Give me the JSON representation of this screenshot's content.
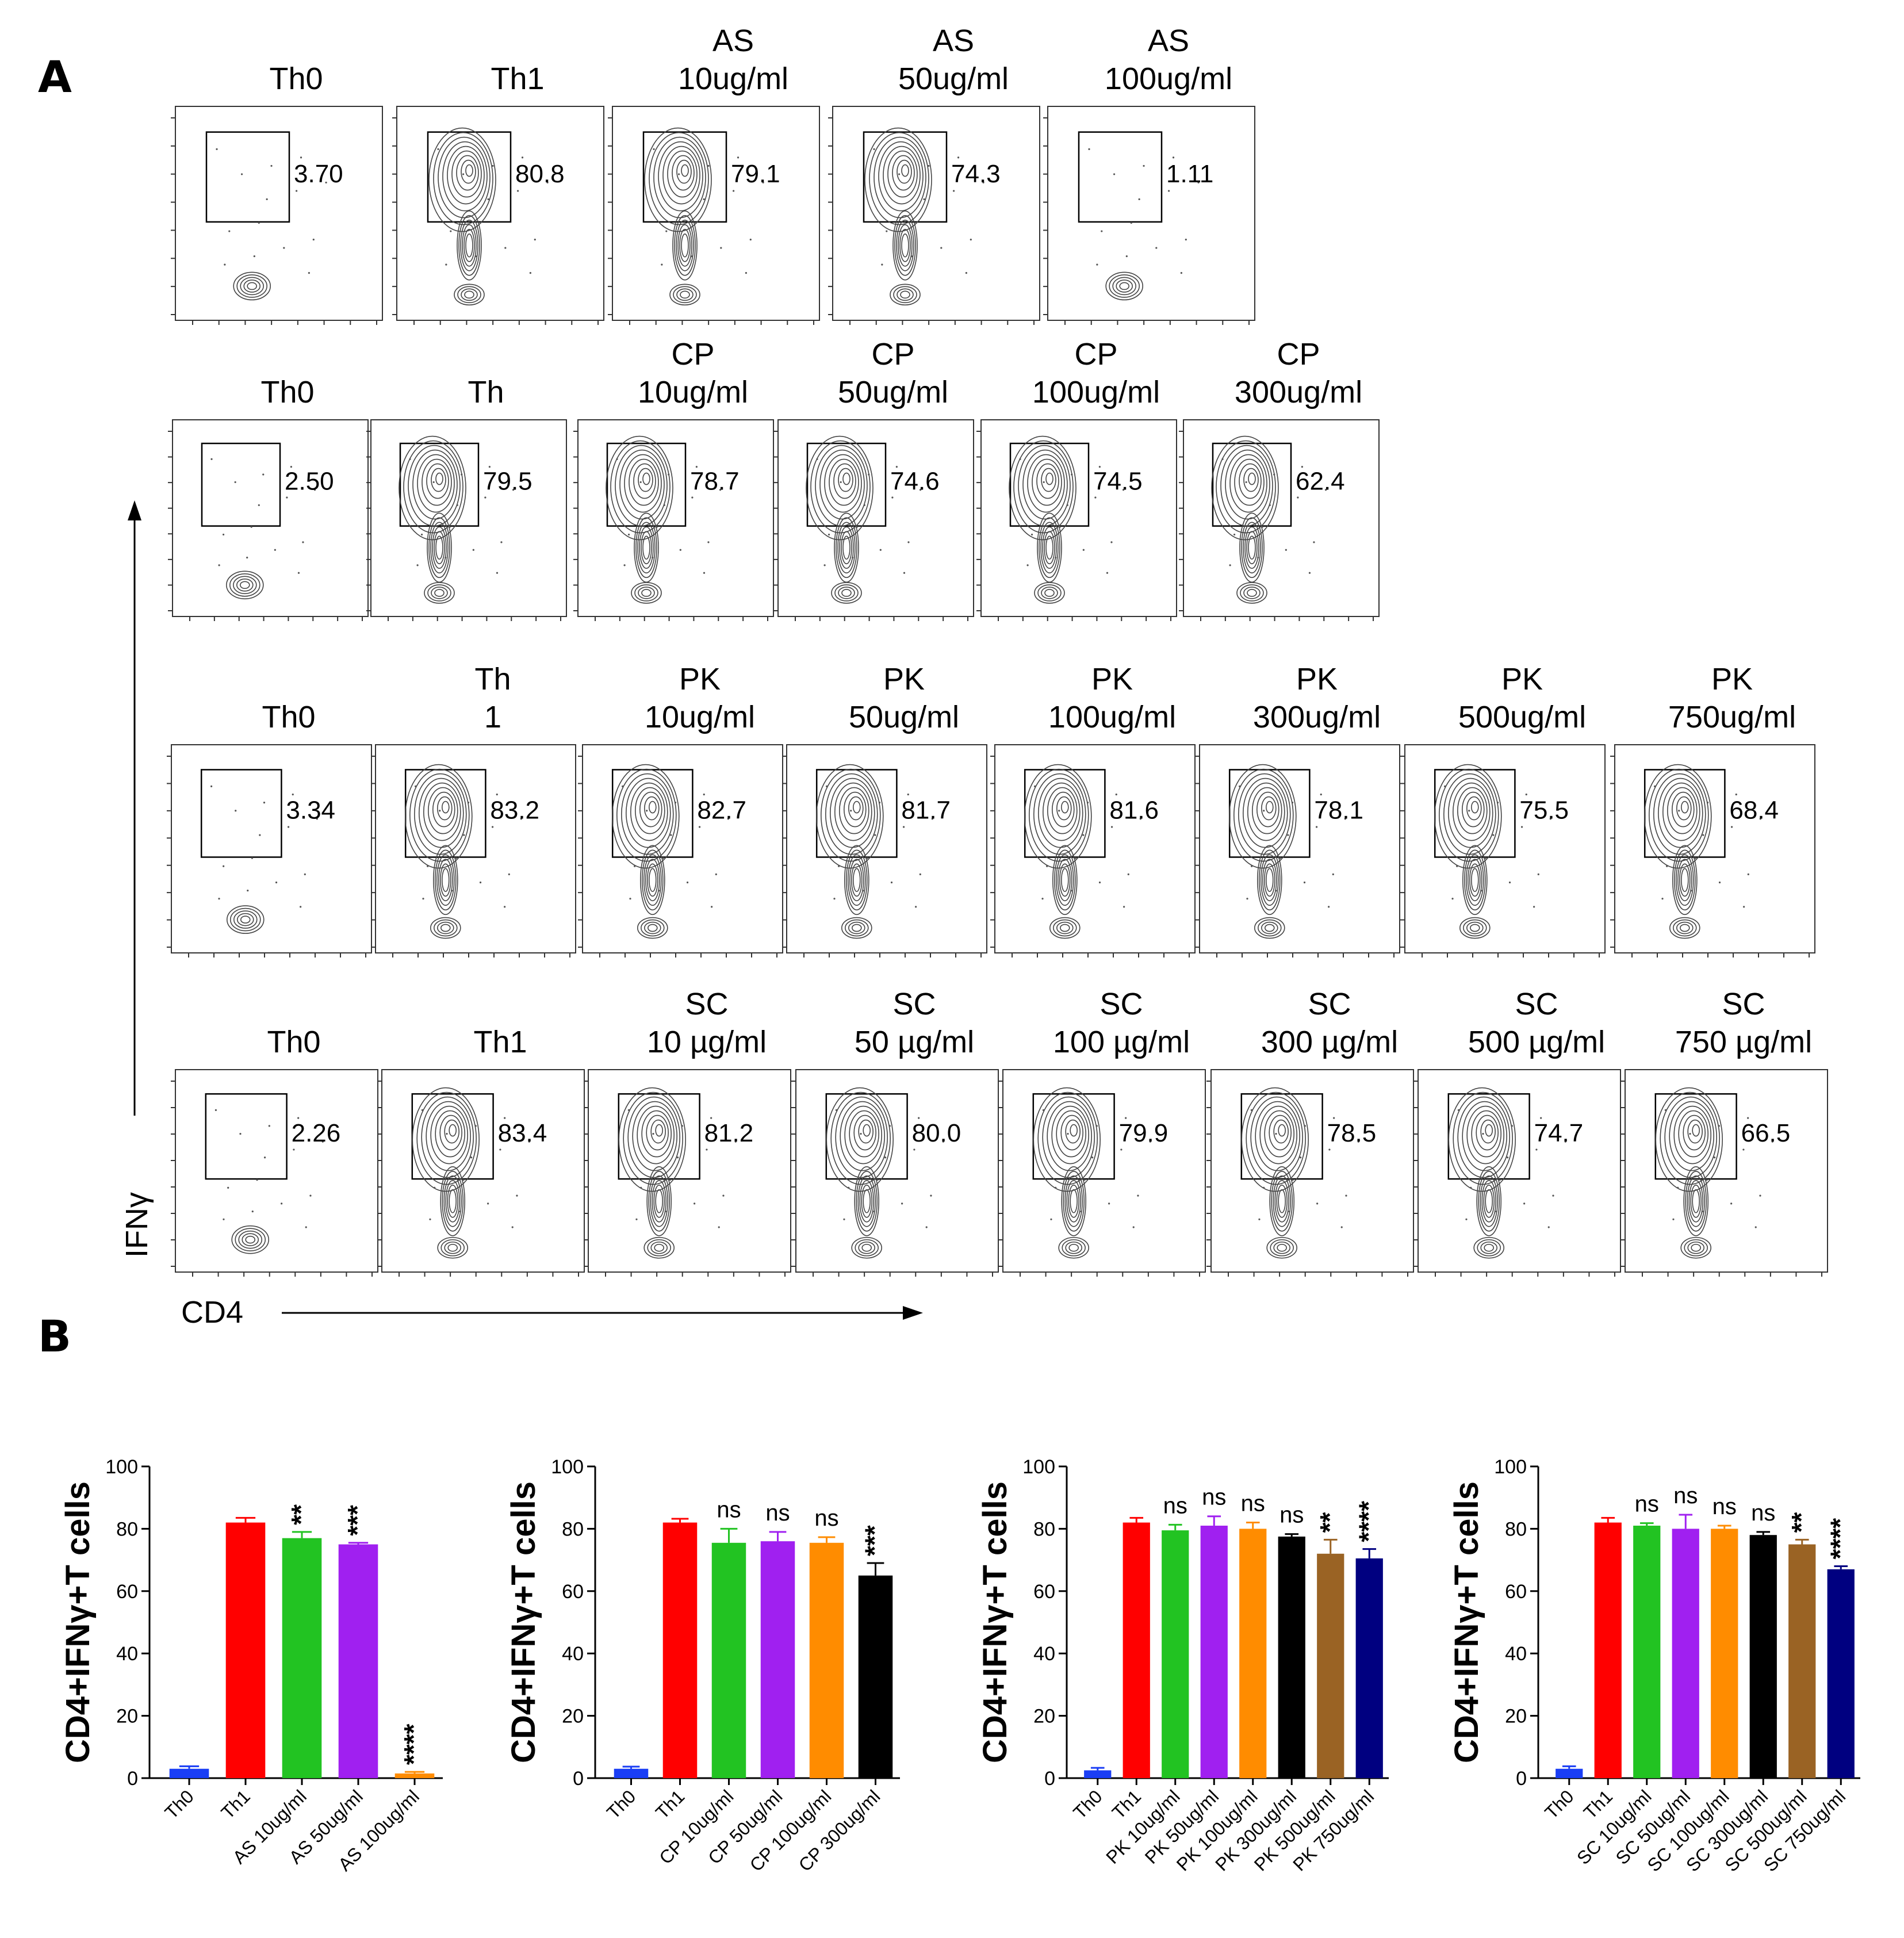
{
  "panel_labels": {
    "a": "A",
    "b": "B"
  },
  "panel_a": {
    "y_axis_label": "IFNγ",
    "x_axis_label": "CD4",
    "rows": [
      {
        "plots": [
          {
            "title": [
              "Th0"
            ],
            "value": "3.70",
            "pattern": "neg"
          },
          {
            "title": [
              "Th1"
            ],
            "value": "80.8",
            "pattern": "pos"
          },
          {
            "title": [
              "AS",
              "10ug/ml"
            ],
            "value": "79.1",
            "pattern": "pos"
          },
          {
            "title": [
              "AS",
              "50ug/ml"
            ],
            "value": "74.3",
            "pattern": "pos"
          },
          {
            "title": [
              "AS",
              "100ug/ml"
            ],
            "value": "1.11",
            "pattern": "neg"
          }
        ]
      },
      {
        "plots": [
          {
            "title": [
              "Th0"
            ],
            "value": "2.50",
            "pattern": "neg"
          },
          {
            "title": [
              "Th"
            ],
            "value": "79.5",
            "pattern": "pos"
          },
          {
            "title": [
              "CP",
              "10ug/ml"
            ],
            "value": "78.7",
            "pattern": "pos"
          },
          {
            "title": [
              "CP",
              "50ug/ml"
            ],
            "value": "74.6",
            "pattern": "pos"
          },
          {
            "title": [
              "CP",
              "100ug/ml"
            ],
            "value": "74.5",
            "pattern": "pos"
          },
          {
            "title": [
              "CP",
              "300ug/ml"
            ],
            "value": "62.4",
            "pattern": "pos"
          }
        ]
      },
      {
        "plots": [
          {
            "title": [
              "Th0"
            ],
            "value": "3.34",
            "pattern": "neg"
          },
          {
            "title": [
              "Th",
              "1"
            ],
            "value": "83.2",
            "pattern": "pos"
          },
          {
            "title": [
              "PK",
              "10ug/ml"
            ],
            "value": "82.7",
            "pattern": "pos"
          },
          {
            "title": [
              "PK",
              "50ug/ml"
            ],
            "value": "81.7",
            "pattern": "pos"
          },
          {
            "title": [
              "PK",
              "100ug/ml"
            ],
            "value": "81.6",
            "pattern": "pos"
          },
          {
            "title": [
              "PK",
              "300ug/ml"
            ],
            "value": "78.1",
            "pattern": "pos"
          },
          {
            "title": [
              "PK",
              "500ug/ml"
            ],
            "value": "75.5",
            "pattern": "pos"
          },
          {
            "title": [
              "PK",
              "750ug/ml"
            ],
            "value": "68.4",
            "pattern": "pos"
          }
        ]
      },
      {
        "plots": [
          {
            "title": [
              "Th0"
            ],
            "value": "2.26",
            "pattern": "neg"
          },
          {
            "title": [
              "Th1"
            ],
            "value": "83.4",
            "pattern": "pos"
          },
          {
            "title": [
              "SC",
              "10 µg/ml"
            ],
            "value": "81.2",
            "pattern": "pos"
          },
          {
            "title": [
              "SC",
              "50 µg/ml"
            ],
            "value": "80.0",
            "pattern": "pos"
          },
          {
            "title": [
              "SC",
              "100 µg/ml"
            ],
            "value": "79.9",
            "pattern": "pos"
          },
          {
            "title": [
              "SC",
              "300 µg/ml"
            ],
            "value": "78.5",
            "pattern": "pos"
          },
          {
            "title": [
              "SC",
              "500 µg/ml"
            ],
            "value": "74.7",
            "pattern": "pos"
          },
          {
            "title": [
              "SC",
              "750 µg/ml"
            ],
            "value": "66.5",
            "pattern": "pos"
          }
        ]
      }
    ]
  },
  "chart_data": [
    {
      "type": "bar",
      "ylabel": "CD4+IFNγ+T cells",
      "ylim": [
        0,
        100
      ],
      "yticks": [
        "0",
        "20",
        "40",
        "60",
        "80",
        "100"
      ],
      "categories": [
        "Th0",
        "Th1",
        "AS 10ug/ml",
        "AS 50ug/ml",
        "AS 100ug/ml"
      ],
      "values": [
        3,
        82,
        77,
        75,
        1.5
      ],
      "errors": [
        0.8,
        1.5,
        2,
        0.5,
        0.5
      ],
      "annotations": [
        "",
        "",
        "**",
        "***",
        "****"
      ],
      "colors": [
        "#1a3ef5",
        "#ff0000",
        "#22c322",
        "#a020f0",
        "#ff8c00"
      ]
    },
    {
      "type": "bar",
      "ylabel": "CD4+IFNγ+T cells",
      "ylim": [
        0,
        100
      ],
      "yticks": [
        "0",
        "20",
        "40",
        "60",
        "80",
        "100"
      ],
      "categories": [
        "Th0",
        "Th1",
        "CP 10ug/ml",
        "CP 50ug/ml",
        "CP 100ug/ml",
        "CP 300ug/ml"
      ],
      "values": [
        3,
        82,
        75.5,
        76,
        75.5,
        65
      ],
      "errors": [
        0.7,
        1.2,
        4.5,
        3,
        1.8,
        4
      ],
      "annotations": [
        "",
        "",
        "ns",
        "ns",
        "ns",
        "***"
      ],
      "colors": [
        "#1a3ef5",
        "#ff0000",
        "#22c322",
        "#a020f0",
        "#ff8c00",
        "#000000"
      ]
    },
    {
      "type": "bar",
      "ylabel": "CD4+IFNγ+T cells",
      "ylim": [
        0,
        100
      ],
      "yticks": [
        "0",
        "20",
        "40",
        "60",
        "80",
        "100"
      ],
      "categories": [
        "Th0",
        "Th1",
        "PK 10ug/ml",
        "PK 50ug/ml",
        "PK 100ug/ml",
        "PK 300ug/ml",
        "PK 500ug/ml",
        "PK 750ug/ml"
      ],
      "values": [
        2.5,
        82,
        79.5,
        81,
        80,
        77.5,
        72,
        70.5
      ],
      "errors": [
        0.8,
        1.5,
        1.8,
        3,
        2,
        0.8,
        4.5,
        3
      ],
      "annotations": [
        "",
        "",
        "ns",
        "ns",
        "ns",
        "ns",
        "**",
        "****"
      ],
      "colors": [
        "#1a3ef5",
        "#ff0000",
        "#22c322",
        "#a020f0",
        "#ff8c00",
        "#000000",
        "#9a6324",
        "#000080"
      ]
    },
    {
      "type": "bar",
      "ylabel": "CD4+IFNγ+T cells",
      "ylim": [
        0,
        100
      ],
      "yticks": [
        "0",
        "20",
        "40",
        "60",
        "80",
        "100"
      ],
      "categories": [
        "Th0",
        "Th1",
        "SC 10ug/ml",
        "SC 50ug/ml",
        "SC 100ug/ml",
        "SC 300ug/ml",
        "SC 500ug/ml",
        "SC 750ug/ml"
      ],
      "values": [
        3,
        82,
        81,
        80,
        80,
        78,
        75,
        67
      ],
      "errors": [
        0.8,
        1.5,
        0.8,
        4.5,
        1,
        1,
        1.5,
        1
      ],
      "annotations": [
        "",
        "",
        "ns",
        "ns",
        "ns",
        "ns",
        "**",
        "****"
      ],
      "colors": [
        "#1a3ef5",
        "#ff0000",
        "#22c322",
        "#a020f0",
        "#ff8c00",
        "#000000",
        "#9a6324",
        "#000080"
      ]
    }
  ]
}
